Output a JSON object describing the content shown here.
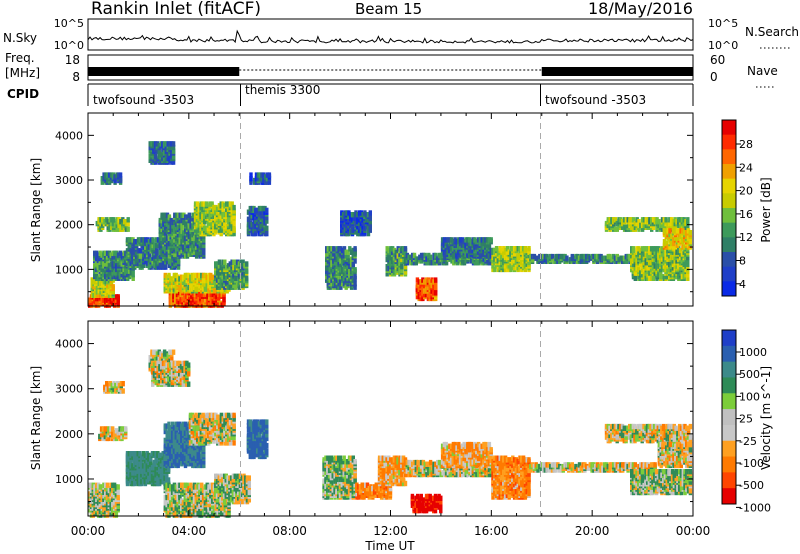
{
  "header": {
    "station": "Rankin Inlet (fitACF)",
    "beam": "Beam 15",
    "date": "18/May/2016"
  },
  "status_panels": {
    "nsky": {
      "label": "N.Sky",
      "ticks": [
        "10^5",
        "10^0"
      ]
    },
    "nsearch": {
      "label": "N.Search",
      "ticks": [
        "10^5",
        "10^0"
      ]
    },
    "freq": {
      "label_lines": [
        "Freq.",
        "[MHz]"
      ],
      "ticks": [
        "18",
        "8"
      ]
    },
    "nave": {
      "label": "Nave",
      "ticks": [
        "60",
        "0"
      ]
    },
    "cpid": {
      "label": "CPID",
      "segments": [
        {
          "name": "twofsound -3503",
          "start_h": 0,
          "end_h": 6
        },
        {
          "name": "themis 3300",
          "start_h": 6,
          "end_h": 18
        },
        {
          "name": "twofsound -3503",
          "start_h": 18,
          "end_h": 24
        }
      ]
    }
  },
  "x_axis": {
    "label": "Time UT",
    "ticks": [
      "00:00",
      "04:00",
      "08:00",
      "12:00",
      "16:00",
      "20:00",
      "00:00"
    ]
  },
  "colorbars": {
    "power": {
      "label": "Power [dB]",
      "ticks": [
        "28",
        "24",
        "20",
        "16",
        "12",
        "8",
        "4"
      ],
      "colors": [
        "#e60000",
        "#ff2b00",
        "#ff6600",
        "#f0a000",
        "#e6d400",
        "#c8cc00",
        "#6fbf3c",
        "#3d9a5b",
        "#2f7f66",
        "#2a4fa8",
        "#1f3fc8",
        "#0a2ae6"
      ]
    },
    "velocity": {
      "label": "Velocity [m s^-1]",
      "ticks": [
        "1000",
        "500",
        "100",
        "25",
        "-25",
        "-100",
        "-500",
        "-1000"
      ],
      "colors": [
        "#1f3fc8",
        "#2a5fb0",
        "#3c8a8a",
        "#2e8b57",
        "#7ccd3a",
        "#c0c0c0",
        "#c8c8c8",
        "#ffa020",
        "#ff7a00",
        "#ff4500",
        "#e60000"
      ]
    }
  },
  "chart_data": [
    {
      "type": "heatmap",
      "name": "power",
      "xlabel": "Time UT",
      "ylabel": "Slant Range [km]",
      "x_range_hours": [
        0,
        24
      ],
      "ylim": [
        180,
        4500
      ],
      "y_ticks": [
        1000,
        2000,
        3000,
        4000
      ],
      "colorbar_range_db": [
        0,
        32
      ],
      "blobs": [
        {
          "t": [
            0.0,
            1.2
          ],
          "r": [
            200,
            420
          ],
          "db": 28
        },
        {
          "t": [
            0.1,
            1.0
          ],
          "r": [
            420,
            800
          ],
          "db": 18
        },
        {
          "t": [
            0.2,
            1.8
          ],
          "r": [
            800,
            1400
          ],
          "db": 10
        },
        {
          "t": [
            0.3,
            1.6
          ],
          "r": [
            1900,
            2150
          ],
          "db": 14
        },
        {
          "t": [
            1.5,
            3.6
          ],
          "r": [
            1050,
            1700
          ],
          "db": 9
        },
        {
          "t": [
            2.4,
            3.4
          ],
          "r": [
            3400,
            3850
          ],
          "db": 8
        },
        {
          "t": [
            0.5,
            1.3
          ],
          "r": [
            2950,
            3150
          ],
          "db": 8
        },
        {
          "t": [
            3.2,
            5.4
          ],
          "r": [
            200,
            520
          ],
          "db": 27
        },
        {
          "t": [
            3.0,
            5.6
          ],
          "r": [
            520,
            900
          ],
          "db": 18
        },
        {
          "t": [
            2.8,
            4.6
          ],
          "r": [
            1300,
            2250
          ],
          "db": 10
        },
        {
          "t": [
            4.2,
            5.8
          ],
          "r": [
            1800,
            2500
          ],
          "db": 16
        },
        {
          "t": [
            5.0,
            6.3
          ],
          "r": [
            600,
            1200
          ],
          "db": 12
        },
        {
          "t": [
            6.3,
            7.1
          ],
          "r": [
            1800,
            2400
          ],
          "db": 7
        },
        {
          "t": [
            6.4,
            7.2
          ],
          "r": [
            2950,
            3150
          ],
          "db": 6
        },
        {
          "t": [
            9.4,
            10.6
          ],
          "r": [
            600,
            1500
          ],
          "db": 10
        },
        {
          "t": [
            10.0,
            11.2
          ],
          "r": [
            1800,
            2300
          ],
          "db": 6
        },
        {
          "t": [
            11.8,
            12.6
          ],
          "r": [
            900,
            1500
          ],
          "db": 12
        },
        {
          "t": [
            13.0,
            13.8
          ],
          "r": [
            350,
            800
          ],
          "db": 26
        },
        {
          "t": [
            12.6,
            16.5
          ],
          "r": [
            1150,
            1350
          ],
          "db": 10
        },
        {
          "t": [
            14.0,
            16.0
          ],
          "r": [
            1300,
            1700
          ],
          "db": 8
        },
        {
          "t": [
            16.0,
            17.5
          ],
          "r": [
            1000,
            1500
          ],
          "db": 16
        },
        {
          "t": [
            17.5,
            22.0
          ],
          "r": [
            1180,
            1320
          ],
          "db": 10
        },
        {
          "t": [
            20.5,
            23.8
          ],
          "r": [
            1900,
            2150
          ],
          "db": 15
        },
        {
          "t": [
            21.5,
            23.8
          ],
          "r": [
            800,
            1500
          ],
          "db": 15
        },
        {
          "t": [
            22.8,
            23.9
          ],
          "r": [
            1500,
            1900
          ],
          "db": 20
        }
      ]
    },
    {
      "type": "heatmap",
      "name": "velocity",
      "xlabel": "Time UT",
      "ylabel": "Slant Range [km]",
      "x_range_hours": [
        0,
        24
      ],
      "ylim": [
        180,
        4500
      ],
      "y_ticks": [
        1000,
        2000,
        3000,
        4000
      ],
      "colorbar_range_ms": [
        -1000,
        1000
      ],
      "blobs": [
        {
          "t": [
            0.0,
            1.2
          ],
          "r": [
            200,
            900
          ],
          "v": 50
        },
        {
          "t": [
            0.4,
            1.5
          ],
          "r": [
            1900,
            2150
          ],
          "v": -10
        },
        {
          "t": [
            1.5,
            3.2
          ],
          "r": [
            900,
            1600
          ],
          "v": 300
        },
        {
          "t": [
            2.4,
            3.4
          ],
          "r": [
            3400,
            3850
          ],
          "v": 10
        },
        {
          "t": [
            0.6,
            1.4
          ],
          "r": [
            2950,
            3150
          ],
          "v": 0
        },
        {
          "t": [
            2.5,
            4.0
          ],
          "r": [
            3100,
            3600
          ],
          "v": 0
        },
        {
          "t": [
            3.0,
            5.6
          ],
          "r": [
            200,
            900
          ],
          "v": 40
        },
        {
          "t": [
            3.0,
            4.6
          ],
          "r": [
            1300,
            2250
          ],
          "v": 500
        },
        {
          "t": [
            4.0,
            5.8
          ],
          "r": [
            1800,
            2450
          ],
          "v": 20
        },
        {
          "t": [
            5.0,
            6.4
          ],
          "r": [
            500,
            1100
          ],
          "v": 60
        },
        {
          "t": [
            6.3,
            7.1
          ],
          "r": [
            1500,
            2300
          ],
          "v": 600
        },
        {
          "t": [
            9.3,
            10.6
          ],
          "r": [
            600,
            1500
          ],
          "v": 70
        },
        {
          "t": [
            10.6,
            12.0
          ],
          "r": [
            600,
            900
          ],
          "v": -150
        },
        {
          "t": [
            11.5,
            12.6
          ],
          "r": [
            900,
            1500
          ],
          "v": -80
        },
        {
          "t": [
            12.8,
            14.0
          ],
          "r": [
            300,
            650
          ],
          "v": -600
        },
        {
          "t": [
            12.6,
            16.5
          ],
          "r": [
            1100,
            1400
          ],
          "v": 0
        },
        {
          "t": [
            14.0,
            16.0
          ],
          "r": [
            1300,
            1800
          ],
          "v": -80
        },
        {
          "t": [
            16.0,
            17.5
          ],
          "r": [
            600,
            1500
          ],
          "v": -150
        },
        {
          "t": [
            17.5,
            22.5
          ],
          "r": [
            1200,
            1350
          ],
          "v": 5
        },
        {
          "t": [
            20.5,
            23.9
          ],
          "r": [
            1850,
            2200
          ],
          "v": 0
        },
        {
          "t": [
            21.5,
            23.9
          ],
          "r": [
            700,
            1200
          ],
          "v": 60
        },
        {
          "t": [
            22.6,
            23.9
          ],
          "r": [
            1300,
            1800
          ],
          "v": 0
        }
      ]
    }
  ]
}
